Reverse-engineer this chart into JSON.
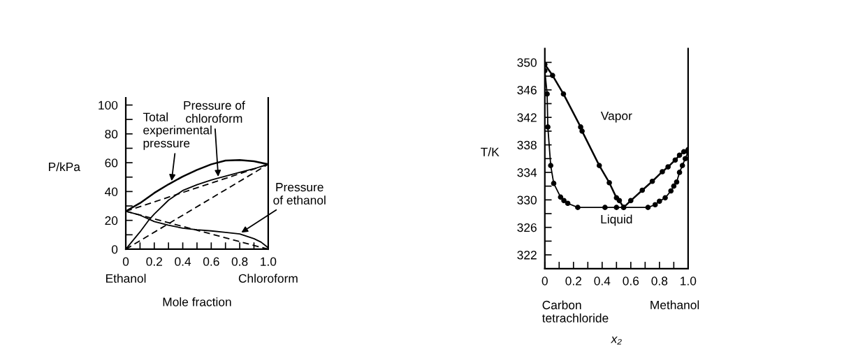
{
  "chart_data": [
    {
      "type": "line",
      "xlabel": "Mole fraction",
      "ylabel": "P/kPa",
      "xlim": [
        0,
        1
      ],
      "ylim": [
        0,
        105
      ],
      "xticks": [
        0,
        {
          "value": 0.1,
          "label": null
        },
        0.2,
        {
          "value": 0.3,
          "label": null
        },
        0.4,
        {
          "value": 0.5,
          "label": null
        },
        0.6,
        {
          "value": 0.7,
          "label": null
        },
        0.8,
        {
          "value": 0.9,
          "label": null
        },
        {
          "value": 1,
          "label": "1.0"
        }
      ],
      "yticks": [
        0,
        {
          "value": 10,
          "label": null
        },
        20,
        {
          "value": 30,
          "label": null
        },
        40,
        {
          "value": 50,
          "label": null
        },
        60,
        {
          "value": 70,
          "label": null
        },
        80,
        {
          "value": 90,
          "label": null
        },
        100
      ],
      "grid": false,
      "legend": false,
      "marker": "none",
      "series": [
        {
          "color": "#000000",
          "line_style": "solid",
          "x": [
            0,
            0.1,
            0.2,
            0.3,
            0.4,
            0.5,
            0.6,
            0.7,
            0.8,
            0.9,
            1
          ],
          "values": [
            26.3,
            32,
            39,
            45,
            50.4,
            55,
            58.9,
            61.5,
            61.8,
            61,
            58.9
          ]
        },
        {
          "color": "#000000",
          "line_style": "solid",
          "x": [
            0,
            0.1,
            0.16,
            0.2,
            0.3,
            0.4,
            0.5,
            0.6,
            0.7,
            0.8,
            0.9,
            1
          ],
          "values": [
            0,
            12,
            20,
            24.4,
            34,
            40.7,
            44.7,
            48,
            50.7,
            53.3,
            55.8,
            58.9
          ]
        },
        {
          "color": "#000000",
          "line_style": "solid",
          "x": [
            0,
            0.1,
            0.2,
            0.3,
            0.4,
            0.5,
            0.6,
            0.7,
            0.8,
            0.9,
            0.95,
            1
          ],
          "values": [
            26.3,
            23.6,
            19.2,
            16.6,
            14.6,
            13.5,
            12.7,
            11.7,
            10.6,
            7.3,
            4.9,
            1
          ]
        },
        {
          "color": "#000000",
          "line_style": "dashed",
          "x": [
            0,
            1
          ],
          "values": [
            26.3,
            58.9
          ]
        },
        {
          "color": "#000000",
          "line_style": "dashed",
          "x": [
            0,
            1
          ],
          "values": [
            0,
            58.9
          ]
        },
        {
          "color": "#000000",
          "line_style": "dashed",
          "x": [
            0,
            1
          ],
          "values": [
            26.3,
            0
          ]
        }
      ],
      "annotations": [
        {
          "text": "Total\nexperimental\npressure",
          "x": 0.32,
          "y": 46
        },
        {
          "text": "Pressure of\nchloroform",
          "x": 0.65,
          "y": 49
        },
        {
          "text": "Pressure\nof ethanol",
          "x": 0.8,
          "y": 10.8
        },
        "Ethanol",
        "Chloroform"
      ]
    },
    {
      "type": "line",
      "xlabel": "x₂",
      "ylabel": "T/K",
      "xlim": [
        0,
        1
      ],
      "ylim": [
        320,
        352
      ],
      "xticks": [
        0,
        {
          "value": 0.1,
          "label": null
        },
        0.2,
        {
          "value": 0.3,
          "label": null
        },
        0.4,
        {
          "value": 0.5,
          "label": null
        },
        0.6,
        {
          "value": 0.7,
          "label": null
        },
        0.8,
        {
          "value": 0.9,
          "label": null
        },
        {
          "value": 1,
          "label": "1.0"
        }
      ],
      "yticks": [
        322,
        {
          "value": 324,
          "label": null
        },
        326,
        {
          "value": 328,
          "label": null
        },
        330,
        {
          "value": 332,
          "label": null
        },
        334,
        {
          "value": 336,
          "label": null
        },
        338,
        {
          "value": 340,
          "label": null
        },
        342,
        {
          "value": 344,
          "label": null
        },
        346,
        {
          "value": 348,
          "label": null
        },
        350
      ],
      "grid": false,
      "legend": false,
      "marker": "circle",
      "series": [
        {
          "color": "#000000",
          "line_style": "solid",
          "x": [
            0,
            0.054,
            0.13,
            0.25,
            0.26,
            0.38,
            0.45,
            0.5,
            0.52,
            0.55,
            0.6,
            0.68,
            0.75,
            0.82,
            0.86,
            0.91,
            0.94,
            0.97,
            1
          ],
          "values": [
            349.7,
            348.1,
            345.4,
            340.6,
            340,
            335,
            332.5,
            330.3,
            329.9,
            328.9,
            329.9,
            331.4,
            332.7,
            334.1,
            334.8,
            335.8,
            336.5,
            337,
            337.3
          ]
        },
        {
          "color": "#000000",
          "line_style": "solid",
          "x": [
            0,
            0.016,
            0.021,
            0.041,
            0.062,
            0.11,
            0.133,
            0.16,
            0.23,
            0.42,
            0.5,
            0.55,
            0.72,
            0.77,
            0.8,
            0.84,
            0.88,
            0.9,
            0.92,
            0.94,
            0.96,
            0.98,
            1
          ],
          "values": [
            348.8,
            345.4,
            340.6,
            335,
            332.4,
            330.4,
            329.9,
            329.5,
            328.9,
            328.9,
            328.9,
            328.9,
            328.9,
            329.3,
            329.8,
            330.3,
            331.3,
            332,
            332.6,
            334,
            335,
            336,
            337
          ]
        }
      ],
      "annotations": [
        "Vapor",
        "Liquid",
        "Carbon\ntetrachloride",
        "Methanol"
      ]
    }
  ]
}
